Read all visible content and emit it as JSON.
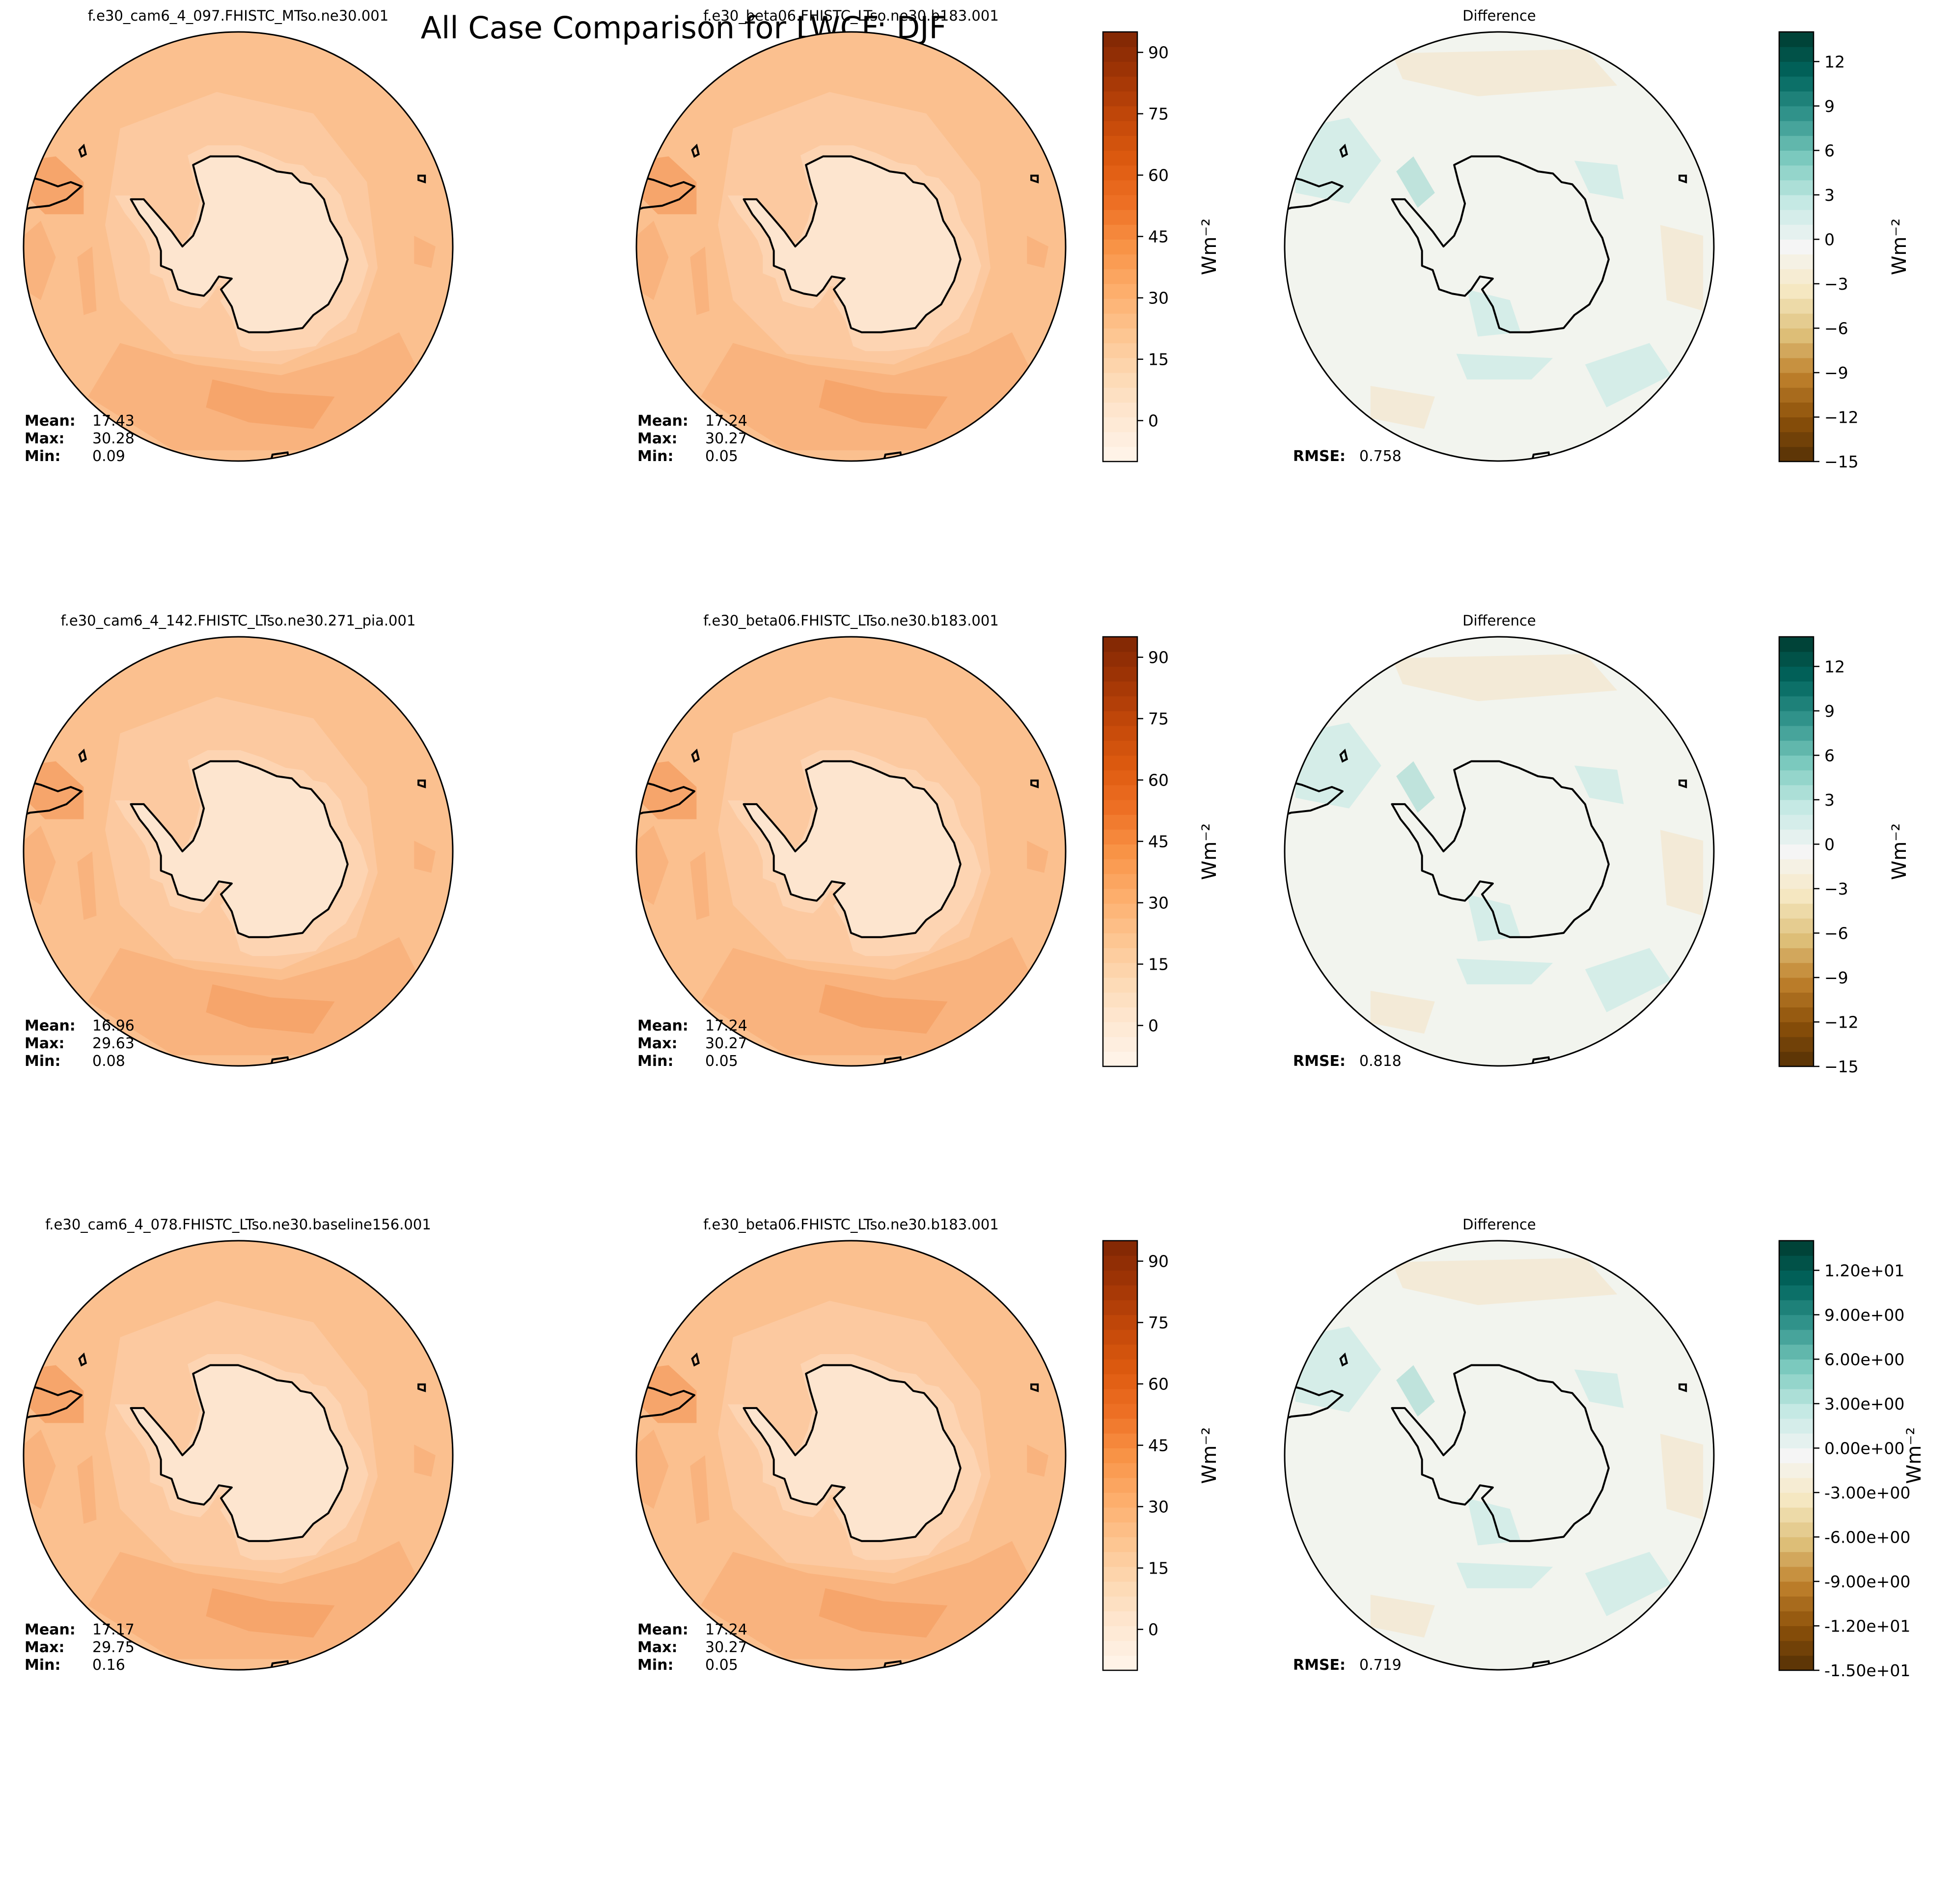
{
  "figure_title": "All Case Comparison for LWCF: DJF",
  "colors": {
    "ocean_base": "#fbc08f",
    "ocean_mid": "#f9b37e",
    "ocean_dark": "#f6a56b",
    "ice": "#fde5cf",
    "ice_rim": "#fdd4b2",
    "diff_base": "#f2f4ee",
    "diff_teal": "#d5ede8",
    "diff_teal2": "#bfe3dc",
    "diff_tan": "#f3ead7",
    "coast": "#000000"
  },
  "stat_labels": {
    "mean": "Mean:",
    "max": "Max:",
    "min": "Min:",
    "rmse": "RMSE:"
  },
  "colorbar_unit": "Wm⁻²",
  "chart_data": [
    {
      "type": "heatmap",
      "projection": "south-polar-stereographic",
      "rows": [
        {
          "test": {
            "title": "f.e30_cam6_4_097.FHISTC_MTso.ne30.001",
            "mean": "17.43",
            "max": "30.28",
            "min": "0.09"
          },
          "base": {
            "title": "f.e30_beta06.FHISTC_LTso.ne30.b183.001",
            "mean": "17.24",
            "max": "30.27",
            "min": "0.05"
          },
          "diff": {
            "title": "Difference",
            "rmse": "0.758"
          }
        },
        {
          "test": {
            "title": "f.e30_cam6_4_142.FHISTC_LTso.ne30.271_pia.001",
            "mean": "16.96",
            "max": "29.63",
            "min": "0.08"
          },
          "base": {
            "title": "f.e30_beta06.FHISTC_LTso.ne30.b183.001",
            "mean": "17.24",
            "max": "30.27",
            "min": "0.05"
          },
          "diff": {
            "title": "Difference",
            "rmse": "0.818"
          }
        },
        {
          "test": {
            "title": "f.e30_cam6_4_078.FHISTC_LTso.ne30.baseline156.001",
            "mean": "17.17",
            "max": "29.75",
            "min": "0.16"
          },
          "base": {
            "title": "f.e30_beta06.FHISTC_LTso.ne30.b183.001",
            "mean": "17.24",
            "max": "30.27",
            "min": "0.05"
          },
          "diff": {
            "title": "Difference",
            "rmse": "0.719"
          }
        }
      ],
      "colorbars": {
        "field": {
          "range": [
            -10,
            95
          ],
          "ticks": [
            "90",
            "75",
            "60",
            "45",
            "30",
            "15",
            "0"
          ],
          "colors": [
            "#fff5eb",
            "#fee8d3",
            "#fdd9b4",
            "#fdc590",
            "#fdad6b",
            "#f89346",
            "#ee7025",
            "#dd5a0f",
            "#c2480a",
            "#a13505",
            "#7f2704"
          ]
        },
        "diff": {
          "range": [
            -15,
            14
          ],
          "ticks_rows_1_2": [
            "12",
            "9",
            "6",
            "3",
            "0",
            "−3",
            "−6",
            "−9",
            "−12",
            "−15"
          ],
          "ticks_row_3": [
            "1.20e+01",
            "9.00e+00",
            "6.00e+00",
            "3.00e+00",
            "0.00e+00",
            "-3.00e+00",
            "-6.00e+00",
            "-9.00e+00",
            "-1.20e+01",
            "-1.50e+01"
          ],
          "colors": [
            "#543005",
            "#8c510a",
            "#bf812d",
            "#dfc27d",
            "#f6e8c3",
            "#f5f5f5",
            "#c7eae5",
            "#80cdc1",
            "#35978f",
            "#01665e",
            "#003c30"
          ]
        }
      }
    }
  ]
}
